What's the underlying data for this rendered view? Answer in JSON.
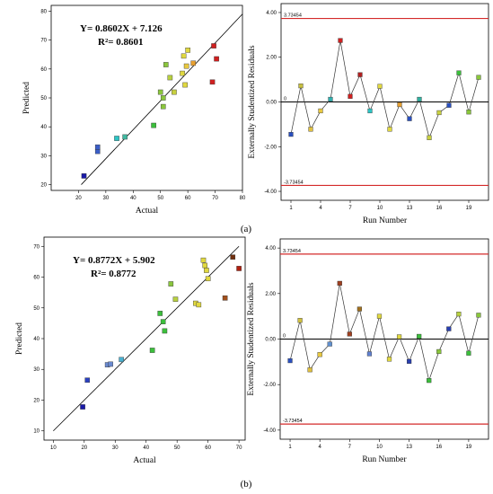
{
  "panels": [
    {
      "label": "(a)",
      "left": "scatter-a",
      "right": "resid-a"
    },
    {
      "label": "(b)",
      "left": "scatter-b",
      "right": "resid-b"
    }
  ],
  "chart_data": [
    {
      "id": "scatter-a",
      "type": "scatter",
      "title": "",
      "xlabel": "Actual",
      "ylabel": "Predicted",
      "xlim": [
        10,
        80
      ],
      "ylim": [
        18,
        82
      ],
      "xticks": [
        20,
        30,
        40,
        50,
        60,
        70,
        80
      ],
      "yticks": [
        20,
        30,
        40,
        50,
        60,
        70,
        80
      ],
      "equation": "Y= 0.8602X + 7.126",
      "r2": "R²= 0.8601",
      "fit_line": {
        "x": [
          21,
          80
        ],
        "y": [
          20,
          79
        ]
      },
      "points": [
        {
          "x": 22,
          "y": 23,
          "color": "#1a1aa8"
        },
        {
          "x": 27,
          "y": 31.5,
          "color": "#3a5ec8"
        },
        {
          "x": 27,
          "y": 33,
          "color": "#3a5ec8"
        },
        {
          "x": 34,
          "y": 36,
          "color": "#2cc4c4"
        },
        {
          "x": 37,
          "y": 36.5,
          "color": "#40b8a0"
        },
        {
          "x": 47.5,
          "y": 40.5,
          "color": "#3cbf3c"
        },
        {
          "x": 50,
          "y": 52,
          "color": "#8ac63c"
        },
        {
          "x": 51,
          "y": 47,
          "color": "#8ac63c"
        },
        {
          "x": 51,
          "y": 50,
          "color": "#8ac63c"
        },
        {
          "x": 52,
          "y": 61.5,
          "color": "#8ac63c"
        },
        {
          "x": 53.5,
          "y": 57,
          "color": "#b8d040"
        },
        {
          "x": 55,
          "y": 52,
          "color": "#c8d040"
        },
        {
          "x": 58,
          "y": 58.5,
          "color": "#e0d840"
        },
        {
          "x": 58.5,
          "y": 64.5,
          "color": "#e0d840"
        },
        {
          "x": 59,
          "y": 54.5,
          "color": "#e0d840"
        },
        {
          "x": 59.5,
          "y": 61,
          "color": "#e8c840"
        },
        {
          "x": 60,
          "y": 66.5,
          "color": "#e0d840"
        },
        {
          "x": 62,
          "y": 62,
          "color": "#e8a030"
        },
        {
          "x": 69,
          "y": 55.5,
          "color": "#d02020"
        },
        {
          "x": 69.5,
          "y": 68,
          "color": "#d02020"
        },
        {
          "x": 70.5,
          "y": 63.5,
          "color": "#d02020"
        }
      ]
    },
    {
      "id": "resid-a",
      "type": "line",
      "title": "",
      "xlabel": "Run Number",
      "ylabel": "Externally Studentized Residuals",
      "xlim": [
        0,
        21
      ],
      "ylim": [
        -4.4,
        4.4
      ],
      "xticks": [
        1,
        4,
        7,
        10,
        13,
        16,
        19
      ],
      "yticks": [
        -4.0,
        -2.0,
        0.0,
        2.0,
        4.0
      ],
      "ytick_labels": [
        "-4.00",
        "-2.00",
        "0.00",
        "2.00",
        "4.00"
      ],
      "limit_upper": 3.73454,
      "limit_lower": -3.73454,
      "limit_upper_label": "3.73454",
      "limit_lower_label": "-3.73454",
      "zero_label": "0",
      "points": [
        {
          "x": 1,
          "y": -1.45,
          "color": "#2a50c0"
        },
        {
          "x": 2,
          "y": 0.72,
          "color": "#c8c040"
        },
        {
          "x": 3,
          "y": -1.22,
          "color": "#e0c040"
        },
        {
          "x": 4,
          "y": -0.4,
          "color": "#e8c840"
        },
        {
          "x": 5,
          "y": 0.12,
          "color": "#30b0b0"
        },
        {
          "x": 6,
          "y": 2.75,
          "color": "#d02020"
        },
        {
          "x": 7,
          "y": 0.25,
          "color": "#d02020"
        },
        {
          "x": 8,
          "y": 1.22,
          "color": "#b02020"
        },
        {
          "x": 9,
          "y": -0.4,
          "color": "#2cc4c4"
        },
        {
          "x": 10,
          "y": 0.7,
          "color": "#e0d840"
        },
        {
          "x": 11,
          "y": -1.22,
          "color": "#e0d840"
        },
        {
          "x": 12,
          "y": -0.12,
          "color": "#e8a030"
        },
        {
          "x": 13,
          "y": -0.75,
          "color": "#2a50c0"
        },
        {
          "x": 14,
          "y": 0.12,
          "color": "#30b0a0"
        },
        {
          "x": 15,
          "y": -1.6,
          "color": "#c8d040"
        },
        {
          "x": 16,
          "y": -0.48,
          "color": "#c8d040"
        },
        {
          "x": 17,
          "y": -0.15,
          "color": "#2a50c0"
        },
        {
          "x": 18,
          "y": 1.3,
          "color": "#3cbf3c"
        },
        {
          "x": 19,
          "y": -0.45,
          "color": "#8ac63c"
        },
        {
          "x": 20,
          "y": 1.1,
          "color": "#8ac63c"
        }
      ]
    },
    {
      "id": "scatter-b",
      "type": "scatter",
      "title": "",
      "xlabel": "Actual",
      "ylabel": "Predicted",
      "xlim": [
        7,
        72
      ],
      "ylim": [
        7,
        73
      ],
      "xticks": [
        10,
        20,
        30,
        40,
        50,
        60,
        70
      ],
      "yticks": [
        10,
        20,
        30,
        40,
        50,
        60,
        70
      ],
      "equation": "Y= 0.8772X + 5.902",
      "r2": "R²= 0.8772",
      "fit_line": {
        "x": [
          10,
          70
        ],
        "y": [
          10,
          70
        ]
      },
      "points": [
        {
          "x": 19.5,
          "y": 17.8,
          "color": "#1a1aa8"
        },
        {
          "x": 21,
          "y": 26.5,
          "color": "#2a40c0"
        },
        {
          "x": 27.5,
          "y": 31.5,
          "color": "#6a8ad0"
        },
        {
          "x": 28.5,
          "y": 31.7,
          "color": "#6a8ad0"
        },
        {
          "x": 32,
          "y": 33.2,
          "color": "#4ab0d0"
        },
        {
          "x": 42,
          "y": 36.2,
          "color": "#3cbf3c"
        },
        {
          "x": 44.5,
          "y": 48.2,
          "color": "#3cbf3c"
        },
        {
          "x": 45.5,
          "y": 45.5,
          "color": "#3cbf3c"
        },
        {
          "x": 46,
          "y": 42.5,
          "color": "#3cbf3c"
        },
        {
          "x": 48,
          "y": 57.8,
          "color": "#8ac63c"
        },
        {
          "x": 49.5,
          "y": 52.8,
          "color": "#b8d040"
        },
        {
          "x": 56,
          "y": 51.5,
          "color": "#e0d840"
        },
        {
          "x": 57,
          "y": 51,
          "color": "#e0d840"
        },
        {
          "x": 58.5,
          "y": 65.5,
          "color": "#e0d840"
        },
        {
          "x": 59,
          "y": 63.8,
          "color": "#e0d840"
        },
        {
          "x": 59.5,
          "y": 62.2,
          "color": "#e0d840"
        },
        {
          "x": 60,
          "y": 59.5,
          "color": "#e0d840"
        },
        {
          "x": 65.5,
          "y": 53.2,
          "color": "#a0501c"
        },
        {
          "x": 68,
          "y": 66.5,
          "color": "#703010"
        },
        {
          "x": 70,
          "y": 62.8,
          "color": "#b02010"
        }
      ]
    },
    {
      "id": "resid-b",
      "type": "line",
      "title": "",
      "xlabel": "Run Number",
      "ylabel": "Externally Studentized Residuals",
      "xlim": [
        0,
        21
      ],
      "ylim": [
        -4.4,
        4.4
      ],
      "xticks": [
        1,
        4,
        7,
        10,
        13,
        16,
        19
      ],
      "yticks": [
        -4.0,
        -2.0,
        0.0,
        2.0,
        4.0
      ],
      "ytick_labels": [
        "-4.00",
        "-2.00",
        "0.00",
        "2.00",
        "4.00"
      ],
      "limit_upper": 3.73454,
      "limit_lower": -3.73454,
      "limit_upper_label": "3.73454",
      "limit_lower_label": "-3.73454",
      "zero_label": "0",
      "points": [
        {
          "x": 1,
          "y": -0.95,
          "color": "#2a50c0"
        },
        {
          "x": 2,
          "y": 0.82,
          "color": "#d0c040"
        },
        {
          "x": 3,
          "y": -1.35,
          "color": "#e0c040"
        },
        {
          "x": 4,
          "y": -0.68,
          "color": "#e8c840"
        },
        {
          "x": 5,
          "y": -0.22,
          "color": "#6090d0"
        },
        {
          "x": 6,
          "y": 2.45,
          "color": "#a04020"
        },
        {
          "x": 7,
          "y": 0.22,
          "color": "#a04020"
        },
        {
          "x": 8,
          "y": 1.32,
          "color": "#a07020"
        },
        {
          "x": 9,
          "y": -0.65,
          "color": "#6080d0"
        },
        {
          "x": 10,
          "y": 1.0,
          "color": "#e0d840"
        },
        {
          "x": 11,
          "y": -0.88,
          "color": "#e0d840"
        },
        {
          "x": 12,
          "y": 0.1,
          "color": "#e0d840"
        },
        {
          "x": 13,
          "y": -0.98,
          "color": "#2a40b0"
        },
        {
          "x": 14,
          "y": 0.12,
          "color": "#3cbf3c"
        },
        {
          "x": 15,
          "y": -1.82,
          "color": "#3cbf3c"
        },
        {
          "x": 16,
          "y": -0.55,
          "color": "#8ac63c"
        },
        {
          "x": 17,
          "y": 0.45,
          "color": "#2a40b0"
        },
        {
          "x": 18,
          "y": 1.1,
          "color": "#b8d040"
        },
        {
          "x": 19,
          "y": -0.62,
          "color": "#3cbf3c"
        },
        {
          "x": 20,
          "y": 1.05,
          "color": "#8ac63c"
        }
      ]
    }
  ]
}
